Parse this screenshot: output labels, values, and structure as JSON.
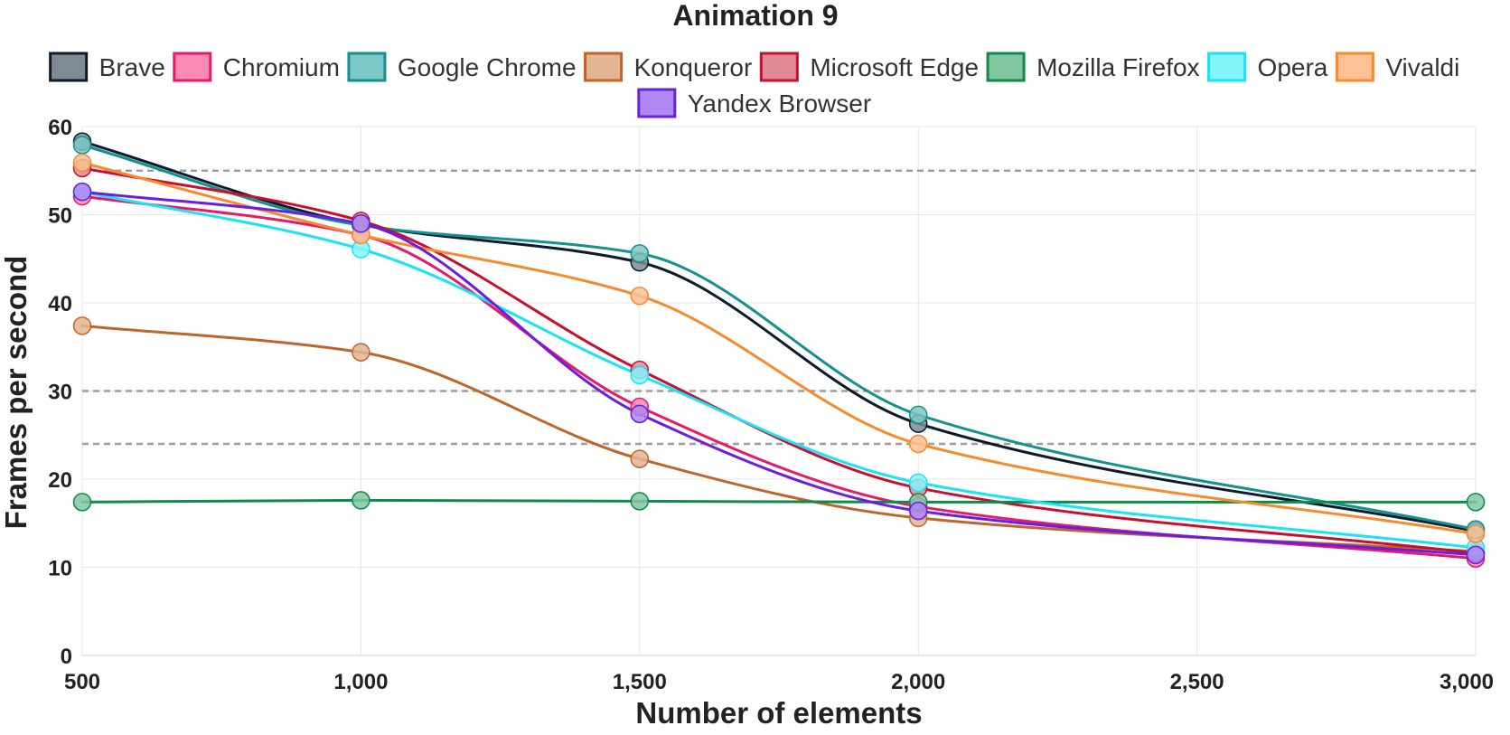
{
  "chart_data": {
    "type": "line",
    "title": "Animation 9",
    "xlabel": "Number of elements",
    "ylabel": "Frames per second",
    "x": [
      500,
      1000,
      1500,
      2000,
      3000
    ],
    "xlim": [
      500,
      3000
    ],
    "ylim": [
      0,
      60
    ],
    "x_ticks": [
      500,
      1000,
      1500,
      2000,
      2500,
      3000
    ],
    "x_tick_labels": [
      "500",
      "1,000",
      "1,500",
      "2,000",
      "2,500",
      "3,000"
    ],
    "y_ticks": [
      0,
      10,
      20,
      30,
      40,
      50,
      60
    ],
    "y_tick_labels": [
      "0",
      "10",
      "20",
      "30",
      "40",
      "50",
      "60"
    ],
    "grid": true,
    "legend_position": "top",
    "reference_lines": [
      55,
      30,
      24
    ],
    "series": [
      {
        "name": "Brave",
        "color": "#0d1b2a",
        "fill": "#808a95",
        "values": [
          58.3,
          48.9,
          44.6,
          26.3,
          14.1
        ]
      },
      {
        "name": "Chromium",
        "color": "#e8196b",
        "fill": "#f98bb5",
        "values": [
          52.1,
          47.7,
          28.2,
          16.9,
          11.0
        ]
      },
      {
        "name": "Google Chrome",
        "color": "#12918f",
        "fill": "#7ec8c7",
        "values": [
          57.9,
          48.8,
          45.6,
          27.3,
          14.3
        ]
      },
      {
        "name": "Konqueror",
        "color": "#c0652a",
        "fill": "#e3b594",
        "values": [
          37.4,
          34.4,
          22.3,
          15.6,
          11.8
        ]
      },
      {
        "name": "Microsoft Edge",
        "color": "#c8102e",
        "fill": "#e28a96",
        "values": [
          55.3,
          49.3,
          32.4,
          19.0,
          11.6
        ]
      },
      {
        "name": "Mozilla Firefox",
        "color": "#0e8a4a",
        "fill": "#83c7a1",
        "values": [
          17.4,
          17.6,
          17.5,
          17.4,
          17.4
        ]
      },
      {
        "name": "Opera",
        "color": "#19e3f5",
        "fill": "#86f5fb",
        "values": [
          52.6,
          46.1,
          31.8,
          19.6,
          12.2
        ]
      },
      {
        "name": "Vivaldi",
        "color": "#f78a2c",
        "fill": "#fcc194",
        "values": [
          55.9,
          47.7,
          40.8,
          24.0,
          13.8
        ]
      },
      {
        "name": "Yandex Browser",
        "color": "#6a1fe0",
        "fill": "#ad88f3",
        "values": [
          52.6,
          49.0,
          27.4,
          16.4,
          11.4
        ]
      }
    ]
  }
}
